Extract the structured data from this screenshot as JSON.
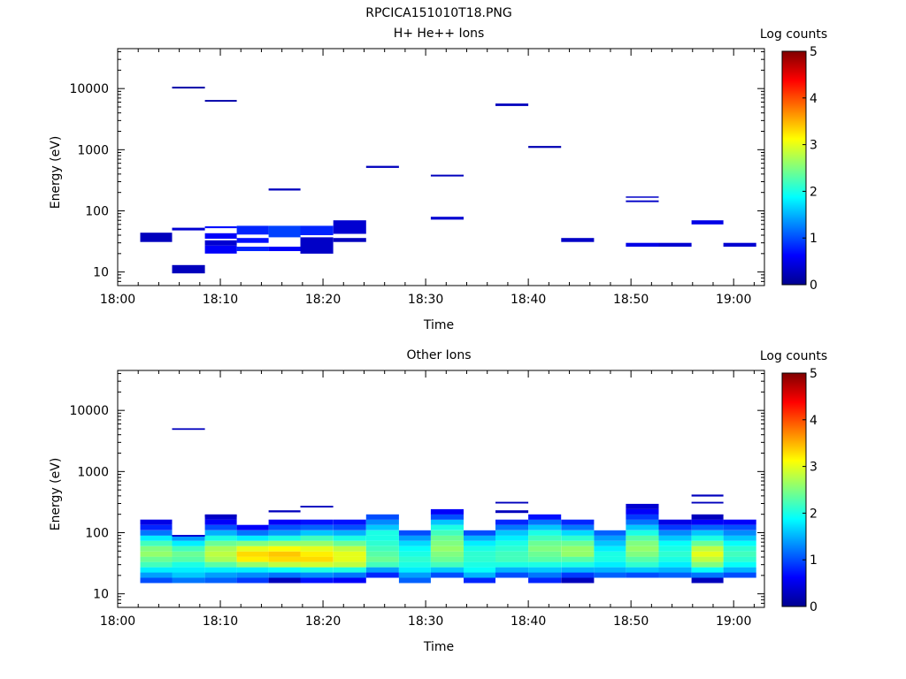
{
  "figure_title": "RPCICA151010T18.PNG",
  "chart_data": [
    {
      "type": "heatmap",
      "title": "H+ He++ Ions",
      "xlabel": "Time",
      "ylabel": "Energy (eV)",
      "x_ticks": [
        "18:00",
        "18:10",
        "18:20",
        "18:30",
        "18:40",
        "18:50",
        "19:00"
      ],
      "xlim_minutes": [
        0,
        63
      ],
      "y_scale": "log",
      "ylim": [
        6,
        45000
      ],
      "y_ticks": [
        {
          "v": 10,
          "label": "10"
        },
        {
          "v": 100,
          "label": "100"
        },
        {
          "v": 1000,
          "label": "1000"
        },
        {
          "v": 10000,
          "label": "10000"
        }
      ],
      "colorbar": {
        "label": "Log counts",
        "min": 0,
        "max": 5,
        "ticks": [
          "0",
          "1",
          "2",
          "3",
          "4",
          "5"
        ]
      },
      "cells": [
        {
          "t0": 2.2,
          "t1": 5.3,
          "e_lo": 31,
          "e_hi": 44,
          "c": 0.3
        },
        {
          "t0": 5.3,
          "t1": 8.5,
          "e_lo": 9.5,
          "e_hi": 13,
          "c": 0.3
        },
        {
          "t0": 5.3,
          "t1": 8.5,
          "e_lo": 48,
          "e_hi": 53,
          "c": 0.4
        },
        {
          "t0": 5.3,
          "t1": 8.5,
          "e_lo": 10000,
          "e_hi": 10700,
          "c": 0.2
        },
        {
          "t0": 8.5,
          "t1": 11.6,
          "e_lo": 20,
          "e_hi": 27,
          "c": 0.6
        },
        {
          "t0": 8.5,
          "t1": 11.6,
          "e_lo": 27,
          "e_hi": 33,
          "c": 0.4
        },
        {
          "t0": 8.5,
          "t1": 11.6,
          "e_lo": 35,
          "e_hi": 43,
          "c": 0.6
        },
        {
          "t0": 8.5,
          "t1": 11.6,
          "e_lo": 52,
          "e_hi": 56,
          "c": 0.7
        },
        {
          "t0": 8.5,
          "t1": 11.6,
          "e_lo": 6100,
          "e_hi": 6500,
          "c": 0.2
        },
        {
          "t0": 11.6,
          "t1": 14.7,
          "e_lo": 22,
          "e_hi": 26,
          "c": 0.8
        },
        {
          "t0": 11.6,
          "t1": 14.7,
          "e_lo": 30,
          "e_hi": 36,
          "c": 0.7
        },
        {
          "t0": 11.6,
          "t1": 14.7,
          "e_lo": 41,
          "e_hi": 57,
          "c": 0.8
        },
        {
          "t0": 14.7,
          "t1": 17.8,
          "e_lo": 22,
          "e_hi": 26,
          "c": 0.6
        },
        {
          "t0": 14.7,
          "t1": 17.8,
          "e_lo": 37,
          "e_hi": 57,
          "c": 0.95
        },
        {
          "t0": 14.7,
          "t1": 17.8,
          "e_lo": 215,
          "e_hi": 232,
          "c": 0.3
        },
        {
          "t0": 17.8,
          "t1": 21.0,
          "e_lo": 20,
          "e_hi": 37,
          "c": 0.35
        },
        {
          "t0": 17.8,
          "t1": 21.0,
          "e_lo": 40,
          "e_hi": 57,
          "c": 0.8
        },
        {
          "t0": 21.0,
          "t1": 24.2,
          "e_lo": 31,
          "e_hi": 36,
          "c": 0.3
        },
        {
          "t0": 21.0,
          "t1": 24.2,
          "e_lo": 42,
          "e_hi": 70,
          "c": 0.4
        },
        {
          "t0": 24.2,
          "t1": 27.4,
          "e_lo": 505,
          "e_hi": 545,
          "c": 0.3
        },
        {
          "t0": 30.5,
          "t1": 33.7,
          "e_lo": 72,
          "e_hi": 80,
          "c": 0.4
        },
        {
          "t0": 30.5,
          "t1": 33.7,
          "e_lo": 365,
          "e_hi": 390,
          "c": 0.3
        },
        {
          "t0": 36.8,
          "t1": 40.0,
          "e_lo": 5200,
          "e_hi": 5700,
          "c": 0.3
        },
        {
          "t0": 40.0,
          "t1": 43.2,
          "e_lo": 1070,
          "e_hi": 1150,
          "c": 0.25
        },
        {
          "t0": 43.2,
          "t1": 46.4,
          "e_lo": 31,
          "e_hi": 36,
          "c": 0.35
        },
        {
          "t0": 49.5,
          "t1": 52.7,
          "e_lo": 26,
          "e_hi": 30,
          "c": 0.5
        },
        {
          "t0": 49.5,
          "t1": 52.7,
          "e_lo": 139,
          "e_hi": 148,
          "c": 0.35
        },
        {
          "t0": 49.5,
          "t1": 52.7,
          "e_lo": 165,
          "e_hi": 172,
          "c": 0.35
        },
        {
          "t0": 52.7,
          "t1": 55.9,
          "e_lo": 26,
          "e_hi": 30,
          "c": 0.4
        },
        {
          "t0": 55.9,
          "t1": 59.0,
          "e_lo": 60,
          "e_hi": 70,
          "c": 0.5
        },
        {
          "t0": 59.0,
          "t1": 62.2,
          "e_lo": 26,
          "e_hi": 30,
          "c": 0.4
        }
      ]
    },
    {
      "type": "heatmap",
      "title": "Other Ions",
      "xlabel": "Time",
      "ylabel": "Energy (eV)",
      "x_ticks": [
        "18:00",
        "18:10",
        "18:20",
        "18:30",
        "18:40",
        "18:50",
        "19:00"
      ],
      "xlim_minutes": [
        0,
        63
      ],
      "y_scale": "log",
      "ylim": [
        6,
        45000
      ],
      "y_ticks": [
        {
          "v": 10,
          "label": "10"
        },
        {
          "v": 100,
          "label": "100"
        },
        {
          "v": 1000,
          "label": "1000"
        },
        {
          "v": 10000,
          "label": "10000"
        }
      ],
      "colorbar": {
        "label": "Log counts",
        "min": 0,
        "max": 5,
        "ticks": [
          "0",
          "1",
          "2",
          "3",
          "4",
          "5"
        ]
      },
      "energy_bins": [
        15,
        18.3,
        22.3,
        27.2,
        33.2,
        40.5,
        49.4,
        60.3,
        73.6,
        89.8,
        110,
        134,
        163,
        199,
        243,
        296
      ],
      "columns": [
        {
          "t0": 2.2,
          "t1": 5.3,
          "vals": [
            1.0,
            1.4,
            1.8,
            2.2,
            2.4,
            2.6,
            2.5,
            2.2,
            1.8,
            1.2,
            0.8,
            0.5
          ]
        },
        {
          "t0": 5.3,
          "t1": 8.5,
          "vals": [
            1.2,
            1.6,
            1.8,
            2.0,
            2.3,
            2.4,
            2.2,
            1.8,
            1.4
          ]
        },
        {
          "t0": 8.5,
          "t1": 11.6,
          "vals": [
            1.1,
            1.4,
            1.8,
            2.3,
            2.7,
            2.8,
            2.7,
            2.4,
            2.0,
            1.5,
            1.0,
            0.6,
            0.4
          ]
        },
        {
          "t0": 11.6,
          "t1": 14.7,
          "vals": [
            0.9,
            1.3,
            1.8,
            2.6,
            3.2,
            3.3,
            3.0,
            2.5,
            1.8,
            1.2,
            0.6
          ]
        },
        {
          "t0": 14.7,
          "t1": 17.8,
          "vals": [
            0.3,
            1.2,
            1.9,
            2.8,
            3.3,
            3.4,
            3.1,
            2.6,
            2.0,
            1.4,
            1.0,
            0.6
          ]
        },
        {
          "t0": 17.8,
          "t1": 21.0,
          "vals": [
            0.7,
            1.3,
            2.0,
            2.9,
            3.3,
            3.2,
            3.0,
            2.6,
            2.2,
            1.6,
            1.1,
            0.7
          ]
        },
        {
          "t0": 21.0,
          "t1": 24.2,
          "vals": [
            0.6,
            1.2,
            2.0,
            2.8,
            3.0,
            3.0,
            2.8,
            2.4,
            2.0,
            1.5,
            1.0,
            0.7
          ]
        },
        {
          "t0": 24.2,
          "t1": 27.4,
          "vals": [
            null,
            0.8,
            1.4,
            2.2,
            2.4,
            2.3,
            2.2,
            2.1,
            2.0,
            2.0,
            1.6,
            1.3,
            1.0
          ]
        },
        {
          "t0": 27.4,
          "t1": 30.5,
          "vals": [
            1.1,
            1.4,
            1.8,
            2.0,
            2.1,
            2.0,
            1.9,
            1.7,
            1.4,
            1.0
          ]
        },
        {
          "t0": 30.5,
          "t1": 33.7,
          "vals": [
            null,
            1.0,
            1.6,
            2.2,
            2.4,
            2.5,
            2.6,
            2.5,
            2.4,
            2.2,
            2.0,
            1.6,
            1.0,
            0.6
          ]
        },
        {
          "t0": 33.7,
          "t1": 36.8,
          "vals": [
            0.8,
            1.5,
            1.9,
            2.0,
            2.1,
            2.1,
            2.0,
            1.8,
            1.5,
            1.0
          ]
        },
        {
          "t0": 36.8,
          "t1": 40.0,
          "vals": [
            null,
            1.0,
            1.5,
            2.0,
            2.2,
            2.2,
            2.1,
            2.0,
            1.8,
            1.6,
            1.2,
            0.8
          ]
        },
        {
          "t0": 40.0,
          "t1": 43.2,
          "vals": [
            0.8,
            1.2,
            1.6,
            2.0,
            2.3,
            2.4,
            2.5,
            2.4,
            2.2,
            2.0,
            1.6,
            1.2,
            0.7
          ]
        },
        {
          "t0": 43.2,
          "t1": 46.4,
          "vals": [
            0.3,
            0.9,
            1.5,
            2.0,
            2.3,
            2.6,
            2.6,
            2.4,
            2.1,
            1.7,
            1.2,
            0.8
          ]
        },
        {
          "t0": 46.4,
          "t1": 49.5,
          "vals": [
            null,
            1.1,
            1.5,
            1.8,
            2.0,
            2.0,
            1.8,
            1.6,
            1.4,
            1.1
          ]
        },
        {
          "t0": 49.5,
          "t1": 52.7,
          "vals": [
            null,
            1.0,
            1.6,
            2.1,
            2.3,
            2.5,
            2.6,
            2.5,
            2.3,
            2.0,
            1.6,
            1.2,
            0.9,
            0.6,
            0.4
          ]
        },
        {
          "t0": 52.7,
          "t1": 55.9,
          "vals": [
            null,
            1.1,
            1.5,
            1.8,
            2.0,
            2.1,
            2.0,
            1.9,
            1.6,
            1.3,
            0.9,
            0.5
          ]
        },
        {
          "t0": 55.9,
          "t1": 59.0,
          "vals": [
            0.3,
            1.2,
            1.9,
            2.5,
            2.8,
            3.0,
            2.8,
            2.4,
            2.0,
            1.6,
            1.1,
            0.6,
            0.3
          ]
        },
        {
          "t0": 59.0,
          "t1": 62.2,
          "vals": [
            null,
            1.0,
            1.5,
            1.9,
            2.1,
            2.2,
            2.1,
            1.9,
            1.6,
            1.3,
            1.0,
            0.6
          ]
        }
      ],
      "extra_cells": [
        {
          "t0": 5.3,
          "t1": 8.5,
          "e_lo": 4800,
          "e_hi": 5100,
          "c": 0.3
        },
        {
          "t0": 5.3,
          "t1": 8.5,
          "e_lo": 86,
          "e_hi": 92,
          "c": 0.4
        },
        {
          "t0": 8.5,
          "t1": 11.6,
          "e_lo": 180,
          "e_hi": 195,
          "c": 0.3
        },
        {
          "t0": 14.7,
          "t1": 17.8,
          "e_lo": 215,
          "e_hi": 232,
          "c": 0.3
        },
        {
          "t0": 17.8,
          "t1": 21.0,
          "e_lo": 258,
          "e_hi": 275,
          "c": 0.3
        },
        {
          "t0": 36.8,
          "t1": 40.0,
          "e_lo": 210,
          "e_hi": 232,
          "c": 0.3
        },
        {
          "t0": 36.8,
          "t1": 40.0,
          "e_lo": 300,
          "e_hi": 320,
          "c": 0.3
        },
        {
          "t0": 55.9,
          "t1": 59.0,
          "e_lo": 300,
          "e_hi": 320,
          "c": 0.3
        },
        {
          "t0": 55.9,
          "t1": 59.0,
          "e_lo": 390,
          "e_hi": 420,
          "c": 0.3
        }
      ]
    }
  ]
}
